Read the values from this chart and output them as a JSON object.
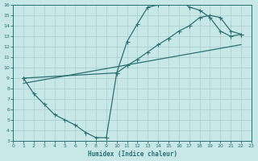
{
  "background_color": "#c8e8e8",
  "line_color": "#2d7070",
  "grid_color": "#a8cccc",
  "xlabel": "Humidex (Indice chaleur)",
  "xlim": [
    0,
    23
  ],
  "ylim": [
    3,
    16
  ],
  "xticks": [
    0,
    1,
    2,
    3,
    4,
    5,
    6,
    7,
    8,
    9,
    10,
    11,
    12,
    13,
    14,
    15,
    16,
    17,
    18,
    19,
    20,
    21,
    22,
    23
  ],
  "yticks": [
    3,
    4,
    5,
    6,
    7,
    8,
    9,
    10,
    11,
    12,
    13,
    14,
    15,
    16
  ],
  "curve1_x": [
    1,
    2,
    3,
    4,
    5,
    6,
    7,
    8,
    9,
    10,
    11,
    12,
    13,
    14,
    15,
    16,
    17,
    18,
    19,
    20,
    21,
    22
  ],
  "curve1_y": [
    9.0,
    7.5,
    6.5,
    5.5,
    5.0,
    4.5,
    3.8,
    3.3,
    3.3,
    9.5,
    12.5,
    14.2,
    15.8,
    16.0,
    16.2,
    16.5,
    15.8,
    15.5,
    14.8,
    13.5,
    13.0,
    13.2
  ],
  "curve2_x": [
    1,
    10,
    11,
    12,
    13,
    14,
    15,
    16,
    17,
    18,
    19,
    20,
    21,
    22
  ],
  "curve2_y": [
    9.0,
    9.5,
    10.2,
    10.8,
    11.5,
    12.2,
    12.8,
    13.5,
    14.0,
    14.8,
    15.0,
    14.8,
    13.5,
    13.2
  ],
  "curve3_x": [
    1,
    22
  ],
  "curve3_y": [
    8.5,
    12.2
  ]
}
